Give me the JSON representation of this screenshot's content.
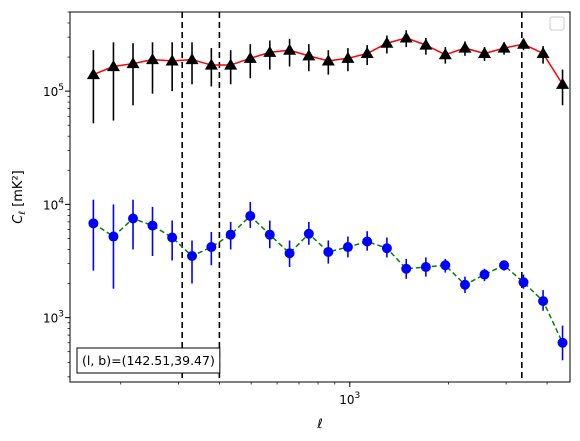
{
  "chart_data": {
    "type": "scatter",
    "title": "",
    "xlabel": "ℓ",
    "ylabel": "C_ℓ [mK²]",
    "xscale": "log",
    "yscale": "log",
    "xlim": [
      140,
      4700
    ],
    "ylim": [
      270,
      500000
    ],
    "x_tick_labels": [
      {
        "value": 1000,
        "base": "10",
        "exp": "3"
      }
    ],
    "y_tick_labels": [
      {
        "value": 1000,
        "base": "10",
        "exp": "3"
      },
      {
        "value": 10000,
        "base": "10",
        "exp": "4"
      },
      {
        "value": 100000,
        "base": "10",
        "exp": "5"
      }
    ],
    "annotation": "(l, b)=(142.51,39.47)",
    "legend_placement": "top-right",
    "vlines_x": [
      308,
      400,
      3350
    ],
    "series": [
      {
        "marker": "triangle",
        "color": "#000000",
        "line_color": "#ff0000",
        "line_style": "solid",
        "x": [
          165,
          190,
          218,
          250,
          287,
          330,
          378,
          433,
          497,
          570,
          655,
          750,
          860,
          987,
          1130,
          1298,
          1487,
          1707,
          1957,
          2247,
          2577,
          2957,
          3390,
          3890,
          4460
        ],
        "y": [
          140000,
          165000,
          175000,
          190000,
          185000,
          190000,
          170000,
          170000,
          195000,
          220000,
          230000,
          205000,
          185000,
          195000,
          215000,
          265000,
          295000,
          255000,
          210000,
          240000,
          215000,
          240000,
          260000,
          215000,
          115000
        ],
        "y_low": [
          52000,
          55000,
          75000,
          95000,
          100000,
          115000,
          110000,
          115000,
          130000,
          155000,
          165000,
          150000,
          140000,
          150000,
          170000,
          215000,
          245000,
          210000,
          175000,
          205000,
          185000,
          210000,
          230000,
          175000,
          75000
        ],
        "y_high": [
          230000,
          270000,
          265000,
          270000,
          270000,
          270000,
          240000,
          230000,
          260000,
          280000,
          290000,
          260000,
          230000,
          240000,
          255000,
          310000,
          345000,
          295000,
          245000,
          275000,
          245000,
          270000,
          290000,
          250000,
          155000
        ]
      },
      {
        "marker": "circle",
        "color": "#0000ff",
        "line_color": "#008000",
        "line_style": "dashed",
        "x": [
          165,
          190,
          218,
          250,
          287,
          330,
          378,
          433,
          497,
          570,
          655,
          750,
          860,
          987,
          1130,
          1298,
          1487,
          1707,
          1957,
          2247,
          2577,
          2957,
          3390,
          3890,
          4460
        ],
        "y": [
          6800,
          5200,
          7500,
          6500,
          5100,
          3500,
          4200,
          5400,
          7900,
          5400,
          3700,
          5500,
          3800,
          4200,
          4700,
          4100,
          2700,
          2800,
          2900,
          1950,
          2400,
          2900,
          2050,
          1400,
          600
        ],
        "y_low": [
          2600,
          1800,
          4000,
          3500,
          3200,
          2000,
          2900,
          4000,
          6200,
          4100,
          2800,
          4400,
          3000,
          3400,
          3900,
          3400,
          2200,
          2300,
          2500,
          1650,
          2100,
          2600,
          1800,
          1150,
          420
        ],
        "y_high": [
          11000,
          10000,
          11000,
          9500,
          7200,
          4800,
          5700,
          7000,
          10500,
          7200,
          4800,
          7000,
          4800,
          5200,
          5800,
          5100,
          3300,
          3400,
          3300,
          2300,
          2700,
          3200,
          2400,
          1750,
          850
        ]
      }
    ]
  }
}
